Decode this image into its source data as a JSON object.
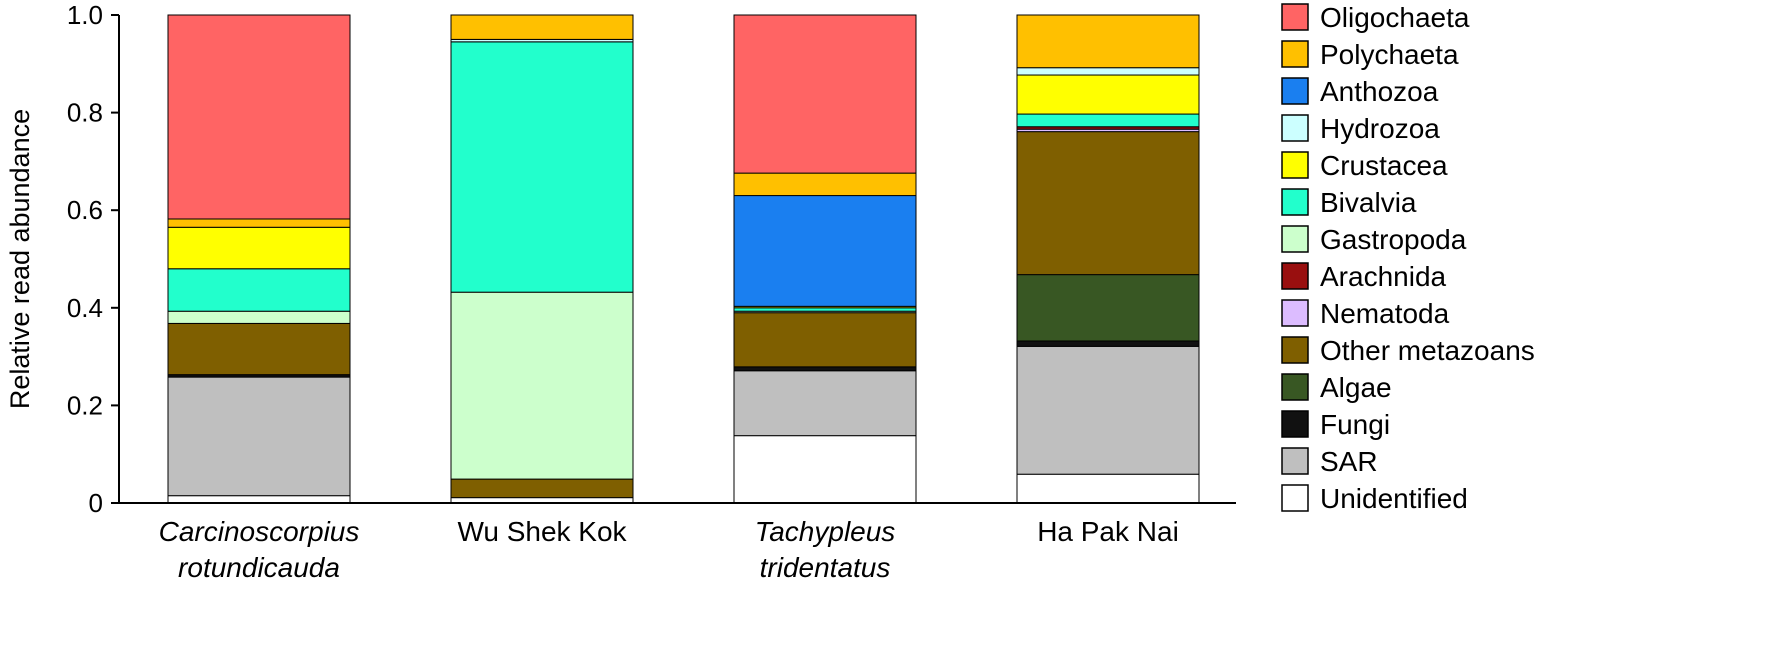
{
  "chart_data": {
    "type": "bar",
    "stacked": true,
    "normalized": true,
    "xlabel": "",
    "ylabel": "Relative read abundance",
    "ylim": [
      0,
      1.0
    ],
    "yticks": [
      {
        "value": 0,
        "label": "0"
      },
      {
        "value": 0.2,
        "label": "0.2"
      },
      {
        "value": 0.4,
        "label": "0.4"
      },
      {
        "value": 0.6,
        "label": "0.6"
      },
      {
        "value": 0.8,
        "label": "0.8"
      },
      {
        "value": 1.0,
        "label": "1.0"
      }
    ],
    "grid": false,
    "legend_position": "right",
    "categories": [
      {
        "lines": [
          "Carcinoscorpius",
          "rotundicauda"
        ],
        "italic": true
      },
      {
        "lines": [
          "Wu Shek Kok"
        ],
        "italic": false
      },
      {
        "lines": [
          "Tachypleus",
          "tridentatus"
        ],
        "italic": true
      },
      {
        "lines": [
          "Ha Pak Nai"
        ],
        "italic": false
      }
    ],
    "series": [
      {
        "name": "Oligochaeta",
        "color": "#ff6464",
        "values": [
          0.418,
          0.0,
          0.324,
          0.0
        ]
      },
      {
        "name": "Polychaeta",
        "color": "#ffc000",
        "values": [
          0.017,
          0.05,
          0.046,
          0.108
        ]
      },
      {
        "name": "Anthozoa",
        "color": "#1a7ff0",
        "values": [
          0.0,
          0.0,
          0.227,
          0.0
        ]
      },
      {
        "name": "Hydrozoa",
        "color": "#ccffff",
        "values": [
          0.0,
          0.005,
          0.0,
          0.015
        ]
      },
      {
        "name": "Crustacea",
        "color": "#ffff00",
        "values": [
          0.085,
          0.0,
          0.003,
          0.08
        ]
      },
      {
        "name": "Bivalvia",
        "color": "#22ffcc",
        "values": [
          0.087,
          0.513,
          0.007,
          0.026
        ]
      },
      {
        "name": "Gastropoda",
        "color": "#ccffcc",
        "values": [
          0.025,
          0.383,
          0.003,
          0.0
        ]
      },
      {
        "name": "Arachnida",
        "color": "#990f0f",
        "values": [
          0.0,
          0.0,
          0.0,
          0.005
        ]
      },
      {
        "name": "Nematoda",
        "color": "#dcbcff",
        "values": [
          0.0,
          0.0,
          0.0,
          0.005
        ]
      },
      {
        "name": "Other metazoans",
        "color": "#7f5f00",
        "values": [
          0.105,
          0.038,
          0.111,
          0.293
        ]
      },
      {
        "name": "Algae",
        "color": "#385723",
        "values": [
          0.0,
          0.0,
          0.0,
          0.136
        ]
      },
      {
        "name": "Fungi",
        "color": "#111111",
        "values": [
          0.005,
          0.0,
          0.008,
          0.011
        ]
      },
      {
        "name": "SAR",
        "color": "#bfbfbf",
        "values": [
          0.243,
          0.0,
          0.133,
          0.262
        ]
      },
      {
        "name": "Unidentified",
        "color": "#ffffff",
        "values": [
          0.015,
          0.011,
          0.138,
          0.059
        ]
      }
    ]
  }
}
